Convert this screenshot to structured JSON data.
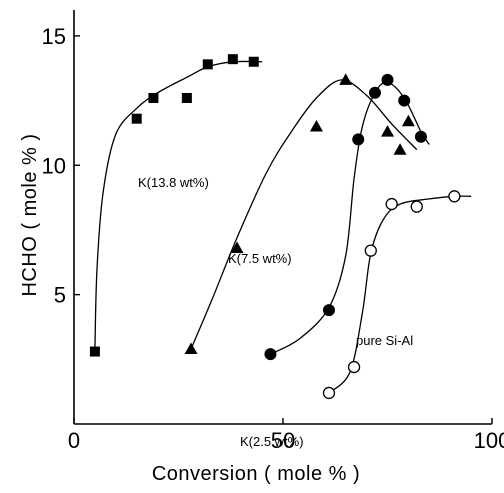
{
  "chart_data": {
    "type": "scatter",
    "xlabel": "Conversion ( mole % )",
    "ylabel": "HCHO ( mole % )",
    "xlim": [
      0,
      100
    ],
    "ylim": [
      0,
      16
    ],
    "xticks": [
      0,
      50,
      100
    ],
    "yticks": [
      5,
      10,
      15
    ],
    "grid": false,
    "series": [
      {
        "name": "K(13.8 wt%)",
        "marker": "square",
        "points": [
          [
            5,
            2.8
          ],
          [
            15,
            11.8
          ],
          [
            19,
            12.6
          ],
          [
            27,
            12.6
          ],
          [
            32,
            13.9
          ],
          [
            38,
            14.1
          ],
          [
            43,
            14.0
          ]
        ],
        "curve": [
          [
            5,
            2.8
          ],
          [
            5.5,
            6
          ],
          [
            7,
            9
          ],
          [
            10,
            11.2
          ],
          [
            15,
            12.2
          ],
          [
            20,
            12.8
          ],
          [
            27,
            13.4
          ],
          [
            32,
            13.8
          ],
          [
            38,
            14.0
          ],
          [
            45,
            14.0
          ]
        ]
      },
      {
        "name": "K(7.5 wt%)",
        "marker": "triangle",
        "points": [
          [
            28,
            2.9
          ],
          [
            39,
            6.8
          ],
          [
            58,
            11.5
          ],
          [
            65,
            13.3
          ],
          [
            75,
            11.3
          ],
          [
            78,
            10.6
          ],
          [
            80,
            11.7
          ]
        ],
        "curve": [
          [
            28,
            2.9
          ],
          [
            33,
            4.8
          ],
          [
            39,
            7.2
          ],
          [
            46,
            9.7
          ],
          [
            52,
            11.3
          ],
          [
            58,
            12.6
          ],
          [
            64,
            13.3
          ],
          [
            70,
            12.7
          ],
          [
            76,
            11.6
          ],
          [
            82,
            10.6
          ]
        ]
      },
      {
        "name": "K(2.5 wt%)",
        "marker": "filled-circle",
        "points": [
          [
            47,
            2.7
          ],
          [
            61,
            4.4
          ],
          [
            68,
            11.0
          ],
          [
            72,
            12.8
          ],
          [
            75,
            13.3
          ],
          [
            79,
            12.5
          ],
          [
            83,
            11.1
          ]
        ],
        "curve": [
          [
            47,
            2.7
          ],
          [
            54,
            3.3
          ],
          [
            61,
            4.5
          ],
          [
            65,
            6.5
          ],
          [
            67,
            9.5
          ],
          [
            69,
            11.5
          ],
          [
            72,
            12.8
          ],
          [
            75,
            13.2
          ],
          [
            79,
            12.6
          ],
          [
            83,
            11.3
          ],
          [
            85,
            10.8
          ]
        ]
      },
      {
        "name": "pure Si-Al",
        "marker": "open-circle",
        "points": [
          [
            61,
            1.2
          ],
          [
            67,
            2.2
          ],
          [
            71,
            6.7
          ],
          [
            76,
            8.5
          ],
          [
            82,
            8.4
          ],
          [
            91,
            8.8
          ]
        ],
        "curve": [
          [
            61,
            1.2
          ],
          [
            66,
            2.0
          ],
          [
            69,
            4.3
          ],
          [
            71,
            6.6
          ],
          [
            74,
            7.9
          ],
          [
            78,
            8.5
          ],
          [
            85,
            8.7
          ],
          [
            91,
            8.8
          ],
          [
            95,
            8.8
          ]
        ]
      }
    ]
  }
}
